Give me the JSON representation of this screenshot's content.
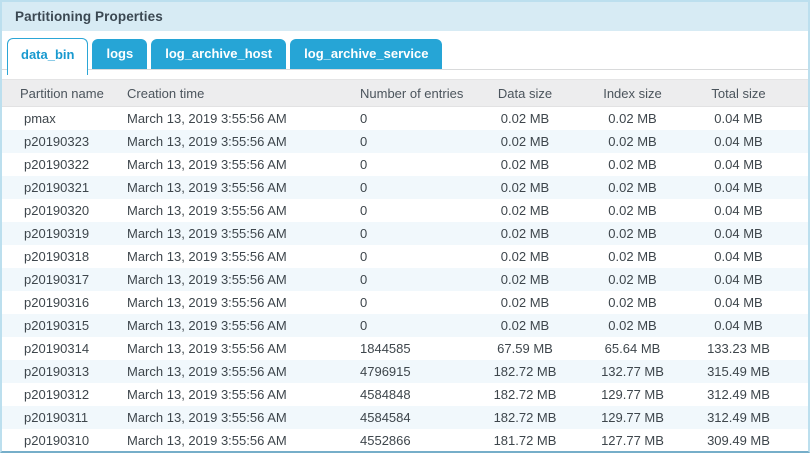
{
  "panel": {
    "title": "Partitioning Properties"
  },
  "tabs": [
    {
      "label": "data_bin",
      "active": true
    },
    {
      "label": "logs",
      "active": false
    },
    {
      "label": "log_archive_host",
      "active": false
    },
    {
      "label": "log_archive_service",
      "active": false
    }
  ],
  "table": {
    "columns": [
      "Partition name",
      "Creation time",
      "Number of entries",
      "Data size",
      "Index size",
      "Total size"
    ],
    "rows": [
      [
        "pmax",
        "March 13, 2019 3:55:56 AM",
        "0",
        "0.02 MB",
        "0.02 MB",
        "0.04 MB"
      ],
      [
        "p20190323",
        "March 13, 2019 3:55:56 AM",
        "0",
        "0.02 MB",
        "0.02 MB",
        "0.04 MB"
      ],
      [
        "p20190322",
        "March 13, 2019 3:55:56 AM",
        "0",
        "0.02 MB",
        "0.02 MB",
        "0.04 MB"
      ],
      [
        "p20190321",
        "March 13, 2019 3:55:56 AM",
        "0",
        "0.02 MB",
        "0.02 MB",
        "0.04 MB"
      ],
      [
        "p20190320",
        "March 13, 2019 3:55:56 AM",
        "0",
        "0.02 MB",
        "0.02 MB",
        "0.04 MB"
      ],
      [
        "p20190319",
        "March 13, 2019 3:55:56 AM",
        "0",
        "0.02 MB",
        "0.02 MB",
        "0.04 MB"
      ],
      [
        "p20190318",
        "March 13, 2019 3:55:56 AM",
        "0",
        "0.02 MB",
        "0.02 MB",
        "0.04 MB"
      ],
      [
        "p20190317",
        "March 13, 2019 3:55:56 AM",
        "0",
        "0.02 MB",
        "0.02 MB",
        "0.04 MB"
      ],
      [
        "p20190316",
        "March 13, 2019 3:55:56 AM",
        "0",
        "0.02 MB",
        "0.02 MB",
        "0.04 MB"
      ],
      [
        "p20190315",
        "March 13, 2019 3:55:56 AM",
        "0",
        "0.02 MB",
        "0.02 MB",
        "0.04 MB"
      ],
      [
        "p20190314",
        "March 13, 2019 3:55:56 AM",
        "1844585",
        "67.59 MB",
        "65.64 MB",
        "133.23 MB"
      ],
      [
        "p20190313",
        "March 13, 2019 3:55:56 AM",
        "4796915",
        "182.72 MB",
        "132.77 MB",
        "315.49 MB"
      ],
      [
        "p20190312",
        "March 13, 2019 3:55:56 AM",
        "4584848",
        "182.72 MB",
        "129.77 MB",
        "312.49 MB"
      ],
      [
        "p20190311",
        "March 13, 2019 3:55:56 AM",
        "4584584",
        "182.72 MB",
        "129.77 MB",
        "312.49 MB"
      ],
      [
        "p20190310",
        "March 13, 2019 3:55:56 AM",
        "4552866",
        "181.72 MB",
        "127.77 MB",
        "309.49 MB"
      ]
    ]
  },
  "colors": {
    "tab-blue": "#26a5d6",
    "tab-border": "#2ba6d6",
    "title-bg": "#d7ebf4",
    "title-text": "#3b4852",
    "panel-border": "#bcdfee",
    "bottom-edge": "#76aec9",
    "header-bg": "#ededee",
    "header-text": "#4b545c",
    "cell-text": "#3e464c",
    "alt-row": "#f1f8fc",
    "tabline": "#d9dadb"
  }
}
